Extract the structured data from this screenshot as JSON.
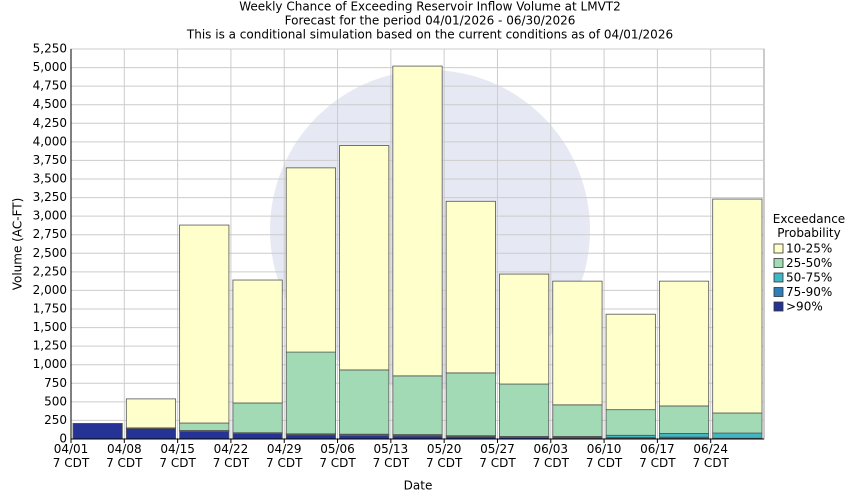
{
  "chart_data": {
    "type": "stacked_bar",
    "title": "Weekly Chance of Exceeding Reservoir Inflow Volume at LMVT2",
    "subtitle": "Forecast for the period 04/01/2026 - 06/30/2026",
    "subtitle2": "This is a conditional simulation based on the current conditions as of 04/01/2026",
    "x_label": "Date",
    "y_label": "Volume (AC-FT)",
    "legend_title": "Exceedance\nProbability",
    "categories": [
      "04/01\n7 CDT",
      "04/08\n7 CDT",
      "04/15\n7 CDT",
      "04/22\n7 CDT",
      "04/29\n7 CDT",
      "05/06\n7 CDT",
      "05/13\n7 CDT",
      "05/20\n7 CDT",
      "05/27\n7 CDT",
      "06/03\n7 CDT",
      "06/10\n7 CDT",
      "06/17\n7 CDT",
      "06/24\n7 CDT"
    ],
    "series": [
      {
        "name": ">90%",
        "color": "#253494",
        "values": [
          210,
          140,
          100,
          75,
          55,
          45,
          40,
          30,
          20,
          15,
          10,
          10,
          5
        ]
      },
      {
        "name": "75-90%",
        "color": "#2c7fb8",
        "values": [
          0,
          10,
          10,
          5,
          10,
          15,
          15,
          10,
          10,
          10,
          10,
          15,
          5
        ]
      },
      {
        "name": "50-75%",
        "color": "#41b6c4",
        "values": [
          0,
          0,
          5,
          5,
          5,
          5,
          5,
          5,
          5,
          10,
          30,
          50,
          70
        ]
      },
      {
        "name": "25-50%",
        "color": "#a1dab4",
        "values": [
          0,
          0,
          100,
          400,
          1100,
          865,
          790,
          845,
          705,
          425,
          345,
          370,
          270
        ]
      },
      {
        "name": "10-25%",
        "color": "#ffffcc",
        "values": [
          0,
          390,
          2665,
          1655,
          2480,
          3020,
          4170,
          2310,
          1480,
          1665,
          1285,
          1680,
          2880
        ]
      }
    ],
    "ylim": [
      0,
      5250
    ],
    "yticks": [
      0,
      250,
      500,
      750,
      {
        "value": 1000,
        "label": "1,000"
      },
      {
        "value": 1250,
        "label": "1,250"
      },
      {
        "value": 1500,
        "label": "1,500"
      },
      {
        "value": 1750,
        "label": "1,750"
      },
      {
        "value": 2000,
        "label": "2,000"
      },
      {
        "value": 2250,
        "label": "2,250"
      },
      {
        "value": 2500,
        "label": "2,500"
      },
      {
        "value": 2750,
        "label": "2,750"
      },
      {
        "value": 3000,
        "label": "3,000"
      },
      {
        "value": 3250,
        "label": "3,250"
      },
      {
        "value": 3500,
        "label": "3,500"
      },
      {
        "value": 3750,
        "label": "3,750"
      },
      {
        "value": 4000,
        "label": "4,000"
      },
      {
        "value": 4250,
        "label": "4,250"
      },
      {
        "value": 4500,
        "label": "4,500"
      },
      {
        "value": 4750,
        "label": "4,750"
      },
      {
        "value": 5000,
        "label": "5,000"
      },
      {
        "value": 5250,
        "label": "5,250"
      }
    ],
    "grid": true
  }
}
